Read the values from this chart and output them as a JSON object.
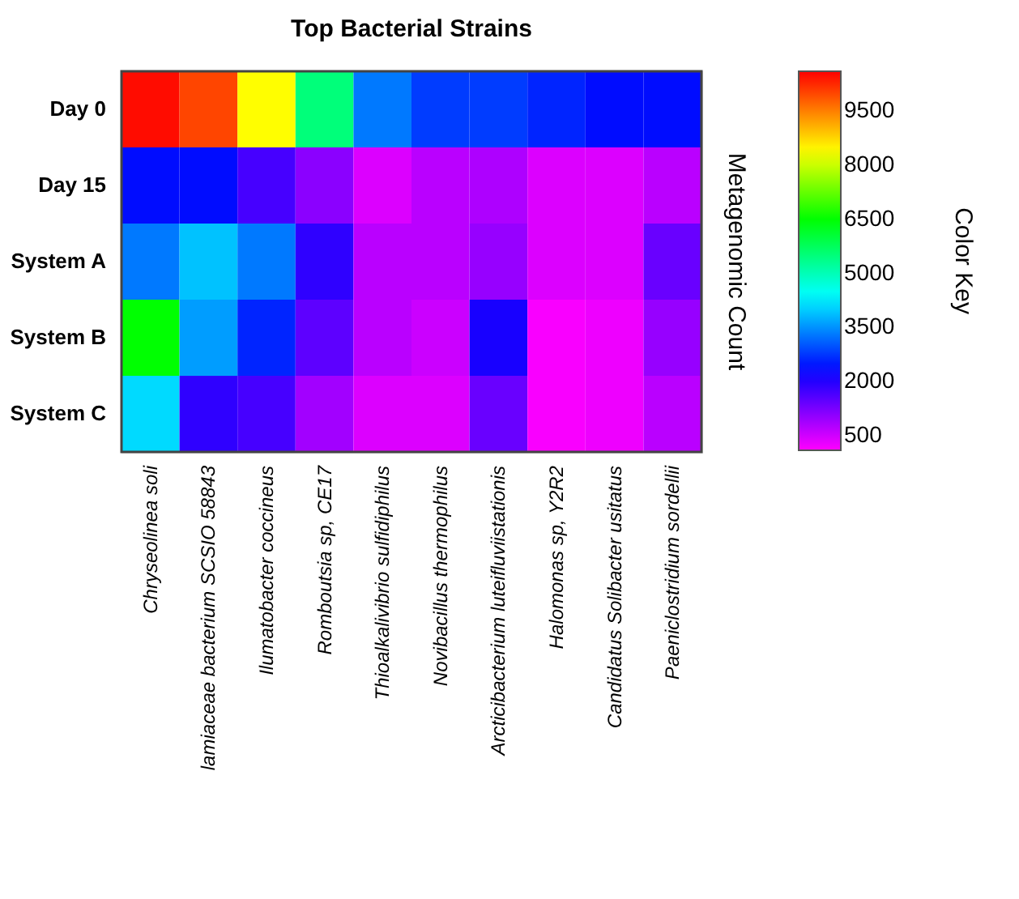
{
  "chart_data": {
    "type": "heatmap",
    "title": "Top Bacterial Strains",
    "y2label": "Metagenomic Count",
    "clabel": "Color Key",
    "categories": [
      "Chryseolinea soli",
      "lamiaceae bacterium SCSIO 58843",
      "Ilumatobacter coccineus",
      "Romboutsia sp, CE17",
      "Thioalkalivibrio sulfidiphilus",
      "Novibacillus thermophilus",
      "Arcticibacterium luteifluviistationis",
      "Halomonas sp, Y2R2",
      "Candidatus Solibacter usitatus",
      "Paeniclostridium sordellii"
    ],
    "y_categories": [
      "Day 0",
      "Day 15",
      "System A",
      "System B",
      "System C"
    ],
    "cells": [
      [
        10500,
        10000,
        8400,
        5500,
        3300,
        2800,
        2800,
        2600,
        2400,
        2400
      ],
      [
        2400,
        2400,
        1700,
        1100,
        400,
        700,
        800,
        400,
        400,
        700
      ],
      [
        3300,
        3900,
        3300,
        1900,
        700,
        700,
        1000,
        400,
        400,
        1400
      ],
      [
        6500,
        3600,
        2600,
        1500,
        700,
        550,
        2100,
        150,
        250,
        1000
      ],
      [
        4100,
        1900,
        1700,
        900,
        400,
        400,
        1400,
        150,
        250,
        700
      ]
    ],
    "clim": [
      100,
      10600
    ],
    "cticks": [
      500,
      2000,
      3500,
      5000,
      6500,
      8000,
      9500
    ]
  }
}
